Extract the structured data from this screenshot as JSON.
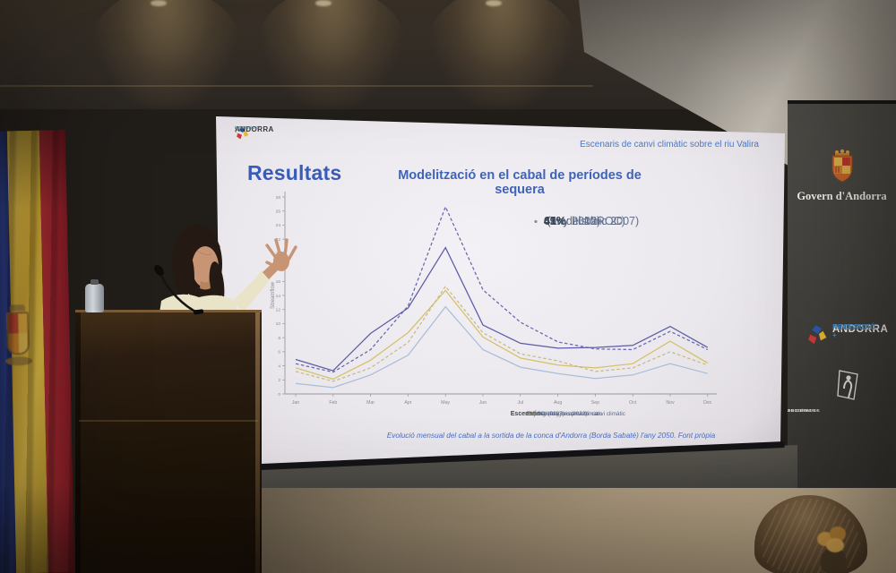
{
  "slide": {
    "logo": {
      "line1": "ANDORRA",
      "line2": "RECERCA +",
      "line3": "INNOVACIÓ"
    },
    "header_right": "Escenaris de canvi climàtic sobre el riu Valira",
    "section_title": "Resultats",
    "chart_title": "Modelització en el cabal de períodes de sequera",
    "bullets": [
      {
        "value": "65%",
        "label": " (any històric 2007)"
      },
      {
        "value": "49%",
        "label": " (any 2022)"
      },
      {
        "value": "41%",
        "label": " (model MIROC)"
      }
    ],
    "legend_title": "Escenario",
    "caption": "Evolució mensual del cabal a la sortida de la conca d'Andorra (Borda Sabaté) l'any 2050. Font pròpia"
  },
  "chart_data": {
    "type": "line",
    "title": "Modelització en el cabal de períodes de sequera",
    "xlabel": "",
    "ylabel": "Streamflow",
    "ylim": [
      0,
      28
    ],
    "ytick_step": 2,
    "grid": false,
    "legend_position": "bottom",
    "categories": [
      "Jan",
      "Feb",
      "Mar",
      "Apr",
      "May",
      "Jun",
      "Jul",
      "Aug",
      "Sep",
      "Oct",
      "Nov",
      "Dec"
    ],
    "series": [
      {
        "name": "Actual",
        "style": "dashed",
        "color": "#6767ad",
        "values": [
          4.3,
          3.1,
          6.3,
          12.5,
          26.6,
          14.8,
          10.2,
          7.4,
          6.4,
          6.3,
          8.9,
          6.3
        ]
      },
      {
        "name": "Canvi global",
        "style": "solid",
        "color": "#5b5ba6",
        "values": [
          4.9,
          3.3,
          8.6,
          12.2,
          20.8,
          9.8,
          7.2,
          6.5,
          6.6,
          6.9,
          9.6,
          6.6
        ]
      },
      {
        "name": "MIROC drought scenario",
        "style": "solid",
        "color": "#a9bdd9",
        "values": [
          1.5,
          0.9,
          2.7,
          5.5,
          12.4,
          6.3,
          3.8,
          2.9,
          2.2,
          2.7,
          4.3,
          2.9
        ]
      },
      {
        "name": "Any sec (2007) i canvi climàtic",
        "style": "solid",
        "color": "#d3c167",
        "values": [
          3.7,
          2.1,
          4.8,
          8.7,
          14.7,
          8.1,
          5.1,
          4.1,
          3.7,
          4.3,
          7.5,
          4.4
        ]
      },
      {
        "name": "Escenari any sec (2022) i canvi climàtic",
        "style": "dashed",
        "color": "#c6ba85",
        "values": [
          3.2,
          1.8,
          3.7,
          7.3,
          15.3,
          8.7,
          5.7,
          4.7,
          3.2,
          3.7,
          6.0,
          4.1
        ]
      }
    ]
  },
  "wall": {
    "govern": {
      "title": "Govern d'Andorra"
    },
    "ari": {
      "line1": "ANDORRA",
      "line2": "RECERCA +",
      "line3": "INNOVACIÓ"
    },
    "sac": {
      "line1": "SOCIETAT",
      "line2": "ANDORRANA",
      "line3": "DE CIÈNCIES"
    }
  },
  "colors": {
    "screen_bg": "#edeaef",
    "slide_accent_blue": "#3f63b8",
    "caption_blue": "#4a6fc0",
    "wall_panel": "#45443f",
    "floor_tan": "#a7957a",
    "flag_blue": "#22316f",
    "flag_yellow": "#d9b43c",
    "flag_red": "#a62b32",
    "scrunchie_orange": "#d8a24a"
  }
}
